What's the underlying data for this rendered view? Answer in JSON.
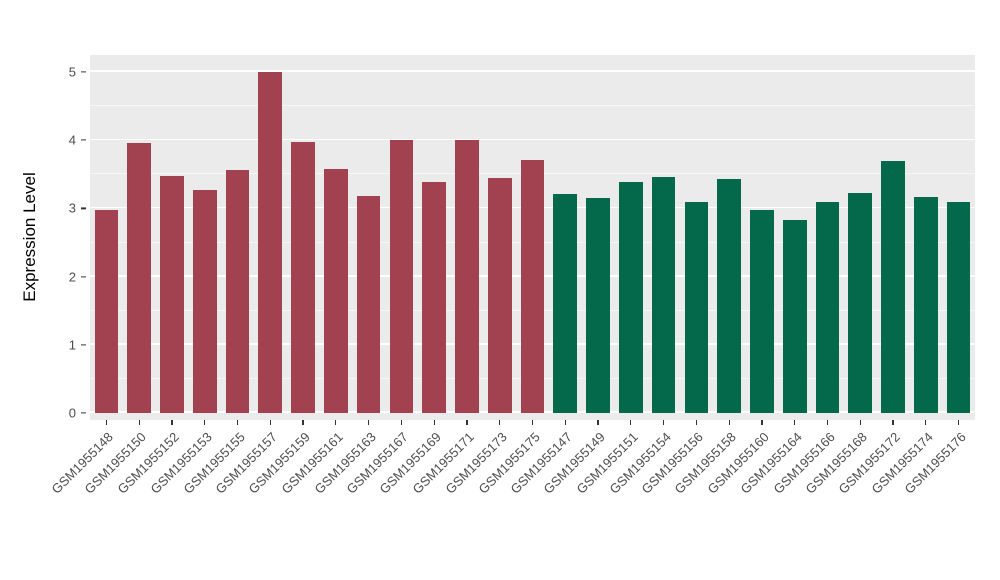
{
  "chart_data": {
    "type": "bar",
    "title": "",
    "xlabel": "",
    "ylabel": "Expression Level",
    "ylim": [
      0,
      5
    ],
    "yticks": [
      0,
      1,
      2,
      3,
      4,
      5
    ],
    "grid": "on",
    "legend": "none",
    "panel_background": "#EBEBEB",
    "gridline_color": "#FFFFFF",
    "group_colors": {
      "group1": "#A2414F",
      "group2": "#04694B"
    },
    "bars": [
      {
        "label": "GSM1955148",
        "value": 2.97,
        "group": "group1"
      },
      {
        "label": "GSM1955150",
        "value": 3.96,
        "group": "group1"
      },
      {
        "label": "GSM1955152",
        "value": 3.47,
        "group": "group1"
      },
      {
        "label": "GSM1955153",
        "value": 3.27,
        "group": "group1"
      },
      {
        "label": "GSM1955155",
        "value": 3.56,
        "group": "group1"
      },
      {
        "label": "GSM1955157",
        "value": 5.0,
        "group": "group1"
      },
      {
        "label": "GSM1955159",
        "value": 3.97,
        "group": "group1"
      },
      {
        "label": "GSM1955161",
        "value": 3.58,
        "group": "group1"
      },
      {
        "label": "GSM1955163",
        "value": 3.18,
        "group": "group1"
      },
      {
        "label": "GSM1955167",
        "value": 4.0,
        "group": "group1"
      },
      {
        "label": "GSM1955169",
        "value": 3.38,
        "group": "group1"
      },
      {
        "label": "GSM1955171",
        "value": 4.0,
        "group": "group1"
      },
      {
        "label": "GSM1955173",
        "value": 3.45,
        "group": "group1"
      },
      {
        "label": "GSM1955175",
        "value": 3.71,
        "group": "group1"
      },
      {
        "label": "GSM1955147",
        "value": 3.21,
        "group": "group2"
      },
      {
        "label": "GSM1955149",
        "value": 3.15,
        "group": "group2"
      },
      {
        "label": "GSM1955151",
        "value": 3.38,
        "group": "group2"
      },
      {
        "label": "GSM1955154",
        "value": 3.46,
        "group": "group2"
      },
      {
        "label": "GSM1955156",
        "value": 3.1,
        "group": "group2"
      },
      {
        "label": "GSM1955158",
        "value": 3.43,
        "group": "group2"
      },
      {
        "label": "GSM1955160",
        "value": 2.97,
        "group": "group2"
      },
      {
        "label": "GSM1955164",
        "value": 2.83,
        "group": "group2"
      },
      {
        "label": "GSM1955166",
        "value": 3.09,
        "group": "group2"
      },
      {
        "label": "GSM1955168",
        "value": 3.22,
        "group": "group2"
      },
      {
        "label": "GSM1955172",
        "value": 3.7,
        "group": "group2"
      },
      {
        "label": "GSM1955174",
        "value": 3.17,
        "group": "group2"
      },
      {
        "label": "GSM1955176",
        "value": 3.1,
        "group": "group2"
      }
    ]
  }
}
